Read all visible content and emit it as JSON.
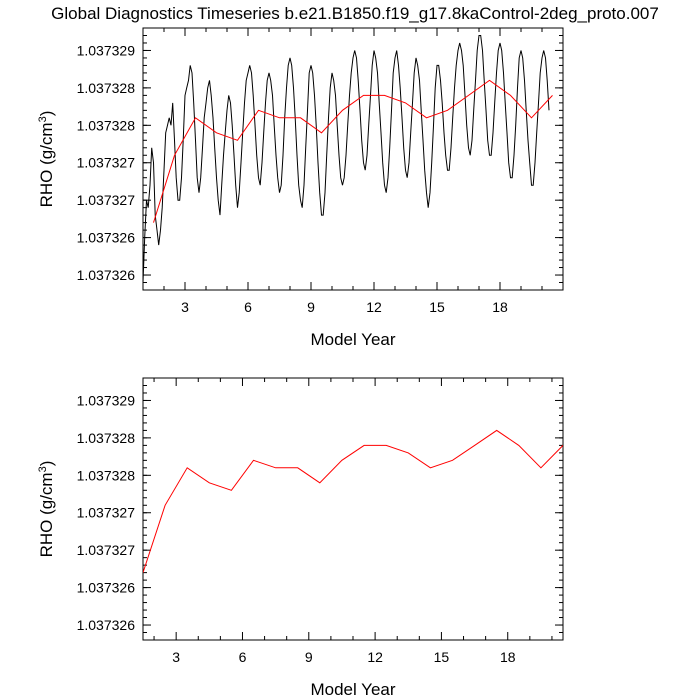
{
  "title": "Global Diagnostics Timeseries b.e21.B1850.f19_g17.8kaControl-2deg_proto.007",
  "colors": {
    "monthly": "#000000",
    "annual": "#ff0000",
    "axis": "#000000",
    "background": "#ffffff"
  },
  "chart_data": [
    {
      "type": "line",
      "xlabel": "Model Year",
      "ylabel": "RHO (g/cm",
      "ylabel_superscript": "3",
      "ylabel_suffix": ")",
      "xlim": [
        1,
        21
      ],
      "ylim": [
        1.0373258,
        1.0373293
      ],
      "x_ticks": [
        3,
        6,
        9,
        12,
        15,
        18
      ],
      "y_tick_values": [
        1.037326,
        1.0373265,
        1.037327,
        1.0373275,
        1.037328,
        1.0373285,
        1.037329
      ],
      "y_tick_labels": [
        "1.037326",
        "1.037326",
        "1.037327",
        "1.037327",
        "1.037328",
        "1.037328",
        "1.037329"
      ],
      "series": [
        {
          "kind": "monthly",
          "color": "#000000",
          "start_year": 1,
          "step": 0.0833333,
          "values": [
            1.0373259,
            1.0373265,
            1.037327,
            1.0373269,
            1.0373272,
            1.0373277,
            1.0373275,
            1.0373268,
            1.0373266,
            1.0373264,
            1.0373266,
            1.0373269,
            1.0373274,
            1.0373279,
            1.037328,
            1.0373281,
            1.037328,
            1.0373283,
            1.0373278,
            1.0373273,
            1.037327,
            1.037327,
            1.0373273,
            1.0373278,
            1.0373284,
            1.0373285,
            1.0373286,
            1.0373288,
            1.0373287,
            1.0373283,
            1.0373278,
            1.0373273,
            1.0373271,
            1.0373273,
            1.0373277,
            1.0373281,
            1.0373283,
            1.0373285,
            1.0373286,
            1.0373284,
            1.0373281,
            1.0373277,
            1.0373273,
            1.037327,
            1.0373268,
            1.0373272,
            1.0373276,
            1.0373279,
            1.0373282,
            1.0373284,
            1.0373283,
            1.037328,
            1.0373276,
            1.0373272,
            1.0373269,
            1.0373271,
            1.0373275,
            1.0373279,
            1.0373283,
            1.0373286,
            1.0373287,
            1.0373288,
            1.0373287,
            1.0373284,
            1.037328,
            1.0373276,
            1.0373273,
            1.0373272,
            1.0373275,
            1.0373279,
            1.0373283,
            1.0373286,
            1.0373287,
            1.0373286,
            1.0373284,
            1.037328,
            1.0373276,
            1.0373273,
            1.0373271,
            1.0373272,
            1.0373276,
            1.0373281,
            1.0373285,
            1.0373288,
            1.0373289,
            1.0373288,
            1.0373285,
            1.0373281,
            1.0373276,
            1.0373272,
            1.037327,
            1.0373269,
            1.0373272,
            1.0373277,
            1.0373282,
            1.0373287,
            1.0373288,
            1.0373287,
            1.0373284,
            1.037328,
            1.0373275,
            1.0373271,
            1.0373268,
            1.0373268,
            1.0373271,
            1.0373276,
            1.0373281,
            1.0373285,
            1.0373287,
            1.0373286,
            1.0373284,
            1.037328,
            1.0373276,
            1.0373273,
            1.0373272,
            1.0373273,
            1.0373276,
            1.037328,
            1.0373284,
            1.0373287,
            1.0373289,
            1.037329,
            1.0373289,
            1.0373286,
            1.0373282,
            1.0373278,
            1.0373275,
            1.0373274,
            1.0373276,
            1.037328,
            1.0373284,
            1.0373288,
            1.037329,
            1.0373289,
            1.0373287,
            1.0373283,
            1.0373279,
            1.0373275,
            1.0373272,
            1.0373271,
            1.0373273,
            1.0373277,
            1.0373282,
            1.0373287,
            1.0373289,
            1.037329,
            1.0373288,
            1.0373285,
            1.0373281,
            1.0373277,
            1.0373274,
            1.0373273,
            1.0373275,
            1.0373279,
            1.0373283,
            1.0373287,
            1.0373289,
            1.0373288,
            1.0373286,
            1.0373282,
            1.0373278,
            1.0373274,
            1.0373271,
            1.0373269,
            1.0373271,
            1.0373275,
            1.037328,
            1.0373285,
            1.0373288,
            1.0373288,
            1.0373286,
            1.0373283,
            1.0373279,
            1.0373276,
            1.0373274,
            1.0373274,
            1.0373277,
            1.0373281,
            1.0373285,
            1.0373288,
            1.037329,
            1.0373291,
            1.037329,
            1.0373288,
            1.0373284,
            1.037328,
            1.0373277,
            1.0373276,
            1.0373278,
            1.0373282,
            1.0373286,
            1.037329,
            1.0373292,
            1.0373292,
            1.037329,
            1.0373286,
            1.0373282,
            1.0373278,
            1.0373276,
            1.0373276,
            1.0373279,
            1.0373283,
            1.0373287,
            1.037329,
            1.0373291,
            1.037329,
            1.0373287,
            1.0373283,
            1.0373279,
            1.0373275,
            1.0373273,
            1.0373273,
            1.0373276,
            1.037328,
            1.0373285,
            1.0373289,
            1.037329,
            1.0373289,
            1.0373286,
            1.0373282,
            1.0373278,
            1.0373275,
            1.0373272,
            1.0373272,
            1.0373275,
            1.0373279,
            1.0373283,
            1.0373287,
            1.0373289,
            1.037329,
            1.0373289,
            1.0373286,
            1.0373282
          ]
        },
        {
          "kind": "annual",
          "color": "#ff0000",
          "x": [
            1.5,
            2.5,
            3.5,
            4.5,
            5.5,
            6.5,
            7.5,
            8.5,
            9.5,
            10.5,
            11.5,
            12.5,
            13.5,
            14.5,
            15.5,
            16.5,
            17.5,
            18.5,
            19.5,
            20.5
          ],
          "values": [
            1.0373267,
            1.0373276,
            1.0373281,
            1.0373279,
            1.0373278,
            1.0373282,
            1.0373281,
            1.0373281,
            1.0373279,
            1.0373282,
            1.0373284,
            1.0373284,
            1.0373283,
            1.0373281,
            1.0373282,
            1.0373284,
            1.0373286,
            1.0373284,
            1.0373281,
            1.0373284
          ]
        }
      ]
    },
    {
      "type": "line",
      "xlabel": "Model Year",
      "ylabel": "RHO (g/cm",
      "ylabel_superscript": "3",
      "ylabel_suffix": ")",
      "xlim": [
        1.5,
        20.5
      ],
      "ylim": [
        1.0373258,
        1.0373293
      ],
      "x_ticks": [
        3,
        6,
        9,
        12,
        15,
        18
      ],
      "y_tick_values": [
        1.037326,
        1.0373265,
        1.037327,
        1.0373275,
        1.037328,
        1.0373285,
        1.037329
      ],
      "y_tick_labels": [
        "1.037326",
        "1.037326",
        "1.037327",
        "1.037327",
        "1.037328",
        "1.037328",
        "1.037329"
      ],
      "series": [
        {
          "kind": "annual",
          "color": "#ff0000",
          "x": [
            1.5,
            2.5,
            3.5,
            4.5,
            5.5,
            6.5,
            7.5,
            8.5,
            9.5,
            10.5,
            11.5,
            12.5,
            13.5,
            14.5,
            15.5,
            16.5,
            17.5,
            18.5,
            19.5,
            20.5
          ],
          "values": [
            1.0373267,
            1.0373276,
            1.0373281,
            1.0373279,
            1.0373278,
            1.0373282,
            1.0373281,
            1.0373281,
            1.0373279,
            1.0373282,
            1.0373284,
            1.0373284,
            1.0373283,
            1.0373281,
            1.0373282,
            1.0373284,
            1.0373286,
            1.0373284,
            1.0373281,
            1.0373284
          ]
        }
      ]
    }
  ]
}
